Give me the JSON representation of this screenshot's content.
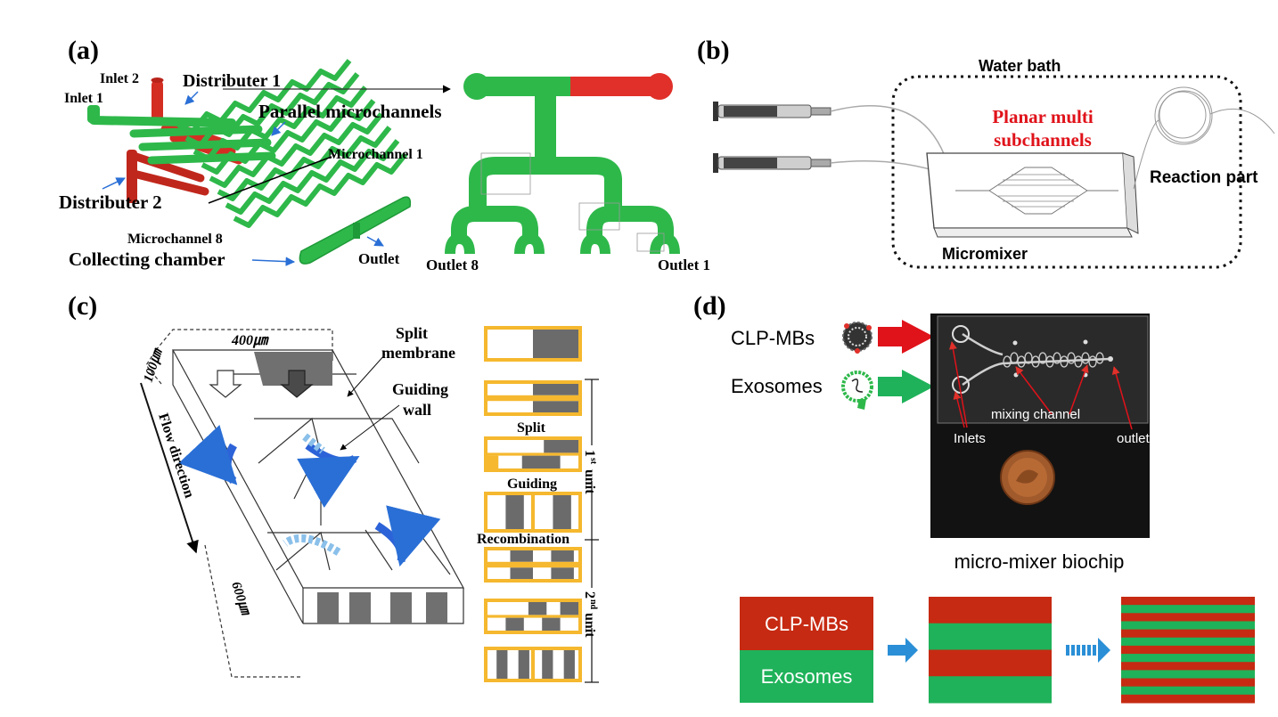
{
  "panels": {
    "a": {
      "label": "(a)",
      "inlet2": "Inlet 2",
      "inlet1": "Inlet 1",
      "distributer1": "Distributer 1",
      "parallel": "Parallel microchannels",
      "microchannel1": "Microchannel 1",
      "distributer2": "Distributer 2",
      "microchannel8": "Microchannel 8",
      "collecting": "Collecting chamber",
      "outlet": "Outlet",
      "outlet8": "Outlet 8",
      "outlet1": "Outlet 1"
    },
    "b": {
      "label": "(b)",
      "water_bath": "Water bath",
      "planar_line1": "Planar multi",
      "planar_line2": "subchannels",
      "reaction": "Reaction part",
      "micromixer": "Micromixer"
    },
    "c": {
      "label": "(c)",
      "width": "400㎛",
      "depth": "100㎛",
      "length": "600㎛",
      "flow": "Flow direction",
      "split_line1": "Split",
      "split_line2": "membrane",
      "guiding_line1": "Guiding",
      "guiding_line2": "wall",
      "step_split": "Split",
      "step_guiding": "Guiding",
      "step_recomb": "Recombination",
      "unit1_sup": "st",
      "unit1_text": "1",
      "unit_word": "unit",
      "unit2_text": "2",
      "unit2_sup": "nd"
    },
    "d": {
      "label": "(d)",
      "clp": "CLP-MBs",
      "exo": "Exosomes",
      "inlets": "Inlets",
      "mixing": "mixing channel",
      "outlet": "outlet",
      "caption": "micro-mixer biochip",
      "box_clp": "CLP-MBs",
      "box_exo": "Exosomes"
    }
  },
  "colors": {
    "green": "#2eb84a",
    "red": "#e0312a",
    "dark_red": "#c0271c",
    "yellow": "#f5b82e",
    "grey": "#6b6b6b",
    "blue_arrow": "#2d63d8",
    "light_blue": "#8ac0ea",
    "photo_bg": "#121212",
    "mix_red": "#c62a12",
    "mix_green": "#1fb25a"
  }
}
